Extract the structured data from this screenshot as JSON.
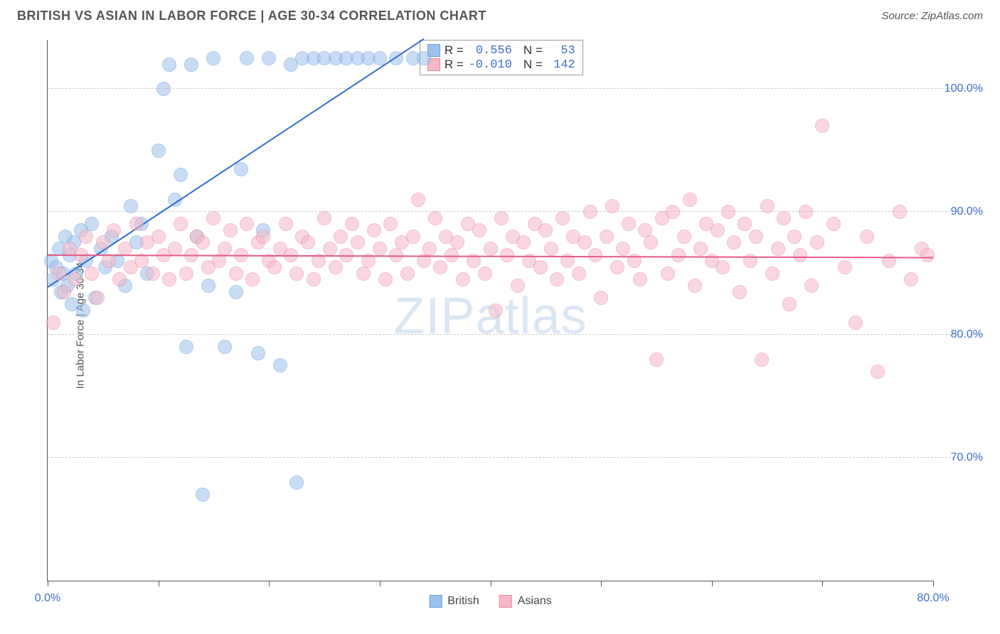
{
  "title": "BRITISH VS ASIAN IN LABOR FORCE | AGE 30-34 CORRELATION CHART",
  "source_label": "Source: ZipAtlas.com",
  "ylabel": "In Labor Force | Age 30-34",
  "watermark_bold": "ZIP",
  "watermark_thin": "atlas",
  "chart": {
    "type": "scatter",
    "xlim": [
      0,
      80
    ],
    "ylim": [
      60,
      104
    ],
    "yticks": [
      70,
      80,
      90,
      100
    ],
    "ytick_labels": [
      "70.0%",
      "80.0%",
      "90.0%",
      "100.0%"
    ],
    "xticks": [
      0,
      10,
      20,
      30,
      40,
      50,
      60,
      70,
      80
    ],
    "xtick_labels": {
      "0": "0.0%",
      "80": "80.0%"
    },
    "grid_color": "#cccccc",
    "axis_color": "#555555",
    "background_color": "#ffffff",
    "marker_radius": 10,
    "marker_opacity": 0.55,
    "series": [
      {
        "name": "British",
        "label": "British",
        "color_fill": "#9cc1ec",
        "color_stroke": "#6a9fd8",
        "R": "0.556",
        "N": "53",
        "trend": {
          "x1": 0,
          "y1": 83.8,
          "x2": 34,
          "y2": 104,
          "color": "#2f6fd0",
          "width": 2
        },
        "points": [
          [
            0.3,
            86
          ],
          [
            0.5,
            84.5
          ],
          [
            0.8,
            85.5
          ],
          [
            1.0,
            87
          ],
          [
            1.2,
            83.5
          ],
          [
            1.4,
            85
          ],
          [
            1.6,
            88
          ],
          [
            1.8,
            84
          ],
          [
            2.0,
            86.5
          ],
          [
            2.2,
            82.5
          ],
          [
            2.4,
            87.5
          ],
          [
            2.6,
            85
          ],
          [
            3.0,
            88.5
          ],
          [
            3.2,
            82
          ],
          [
            3.5,
            86
          ],
          [
            4.0,
            89
          ],
          [
            4.3,
            83
          ],
          [
            4.8,
            87
          ],
          [
            5.2,
            85.5
          ],
          [
            5.8,
            88
          ],
          [
            6.3,
            86
          ],
          [
            7.0,
            84
          ],
          [
            7.5,
            90.5
          ],
          [
            8.0,
            87.5
          ],
          [
            8.5,
            89
          ],
          [
            9.0,
            85
          ],
          [
            10.0,
            95
          ],
          [
            10.5,
            100
          ],
          [
            11.0,
            102
          ],
          [
            11.5,
            91
          ],
          [
            12.0,
            93
          ],
          [
            12.5,
            79
          ],
          [
            13.0,
            102
          ],
          [
            13.5,
            88
          ],
          [
            14.0,
            67
          ],
          [
            14.5,
            84
          ],
          [
            15.0,
            102.5
          ],
          [
            16.0,
            79
          ],
          [
            17.0,
            83.5
          ],
          [
            17.5,
            93.5
          ],
          [
            18.0,
            102.5
          ],
          [
            19.0,
            78.5
          ],
          [
            19.5,
            88.5
          ],
          [
            20.0,
            102.5
          ],
          [
            21.0,
            77.5
          ],
          [
            22.0,
            102
          ],
          [
            22.5,
            68
          ],
          [
            23.0,
            102.5
          ],
          [
            24.0,
            102.5
          ],
          [
            25.0,
            102.5
          ],
          [
            26.0,
            102.5
          ],
          [
            27.0,
            102.5
          ],
          [
            28.0,
            102.5
          ],
          [
            29.0,
            102.5
          ],
          [
            30.0,
            102.5
          ],
          [
            31.5,
            102.5
          ],
          [
            33.0,
            102.5
          ],
          [
            34.0,
            102.5
          ]
        ]
      },
      {
        "name": "Asians",
        "label": "Asians",
        "color_fill": "#f7b8c8",
        "color_stroke": "#e88aa5",
        "R": "-0.010",
        "N": "142",
        "trend": {
          "x1": 0,
          "y1": 86.4,
          "x2": 80,
          "y2": 86.2,
          "color": "#e65a88",
          "width": 2
        },
        "points": [
          [
            0.5,
            81
          ],
          [
            1,
            85
          ],
          [
            1.5,
            83.5
          ],
          [
            2,
            87
          ],
          [
            2.5,
            84.5
          ],
          [
            3,
            86.5
          ],
          [
            3.5,
            88
          ],
          [
            4,
            85
          ],
          [
            4.5,
            83
          ],
          [
            5,
            87.5
          ],
          [
            5.5,
            86
          ],
          [
            6,
            88.5
          ],
          [
            6.5,
            84.5
          ],
          [
            7,
            87
          ],
          [
            7.5,
            85.5
          ],
          [
            8,
            89
          ],
          [
            8.5,
            86
          ],
          [
            9,
            87.5
          ],
          [
            9.5,
            85
          ],
          [
            10,
            88
          ],
          [
            10.5,
            86.5
          ],
          [
            11,
            84.5
          ],
          [
            11.5,
            87
          ],
          [
            12,
            89
          ],
          [
            12.5,
            85
          ],
          [
            13,
            86.5
          ],
          [
            13.5,
            88
          ],
          [
            14,
            87.5
          ],
          [
            14.5,
            85.5
          ],
          [
            15,
            89.5
          ],
          [
            15.5,
            86
          ],
          [
            16,
            87
          ],
          [
            16.5,
            88.5
          ],
          [
            17,
            85
          ],
          [
            17.5,
            86.5
          ],
          [
            18,
            89
          ],
          [
            18.5,
            84.5
          ],
          [
            19,
            87.5
          ],
          [
            19.5,
            88
          ],
          [
            20,
            86
          ],
          [
            20.5,
            85.5
          ],
          [
            21,
            87
          ],
          [
            21.5,
            89
          ],
          [
            22,
            86.5
          ],
          [
            22.5,
            85
          ],
          [
            23,
            88
          ],
          [
            23.5,
            87.5
          ],
          [
            24,
            84.5
          ],
          [
            24.5,
            86
          ],
          [
            25,
            89.5
          ],
          [
            25.5,
            87
          ],
          [
            26,
            85.5
          ],
          [
            26.5,
            88
          ],
          [
            27,
            86.5
          ],
          [
            27.5,
            89
          ],
          [
            28,
            87.5
          ],
          [
            28.5,
            85
          ],
          [
            29,
            86
          ],
          [
            29.5,
            88.5
          ],
          [
            30,
            87
          ],
          [
            30.5,
            84.5
          ],
          [
            31,
            89
          ],
          [
            31.5,
            86.5
          ],
          [
            32,
            87.5
          ],
          [
            32.5,
            85
          ],
          [
            33,
            88
          ],
          [
            33.5,
            91
          ],
          [
            34,
            86
          ],
          [
            34.5,
            87
          ],
          [
            35,
            89.5
          ],
          [
            35.5,
            85.5
          ],
          [
            36,
            88
          ],
          [
            36.5,
            86.5
          ],
          [
            37,
            87.5
          ],
          [
            37.5,
            84.5
          ],
          [
            38,
            89
          ],
          [
            38.5,
            86
          ],
          [
            39,
            88.5
          ],
          [
            39.5,
            85
          ],
          [
            40,
            87
          ],
          [
            40.5,
            82
          ],
          [
            41,
            89.5
          ],
          [
            41.5,
            86.5
          ],
          [
            42,
            88
          ],
          [
            42.5,
            84
          ],
          [
            43,
            87.5
          ],
          [
            43.5,
            86
          ],
          [
            44,
            89
          ],
          [
            44.5,
            85.5
          ],
          [
            45,
            88.5
          ],
          [
            45.5,
            87
          ],
          [
            46,
            84.5
          ],
          [
            46.5,
            89.5
          ],
          [
            47,
            86
          ],
          [
            47.5,
            88
          ],
          [
            48,
            85
          ],
          [
            48.5,
            87.5
          ],
          [
            49,
            90
          ],
          [
            49.5,
            86.5
          ],
          [
            50,
            83
          ],
          [
            50.5,
            88
          ],
          [
            51,
            90.5
          ],
          [
            51.5,
            85.5
          ],
          [
            52,
            87
          ],
          [
            52.5,
            89
          ],
          [
            53,
            86
          ],
          [
            53.5,
            84.5
          ],
          [
            54,
            88.5
          ],
          [
            54.5,
            87.5
          ],
          [
            55,
            78
          ],
          [
            55.5,
            89.5
          ],
          [
            56,
            85
          ],
          [
            56.5,
            90
          ],
          [
            57,
            86.5
          ],
          [
            57.5,
            88
          ],
          [
            58,
            91
          ],
          [
            58.5,
            84
          ],
          [
            59,
            87
          ],
          [
            59.5,
            89
          ],
          [
            60,
            86
          ],
          [
            60.5,
            88.5
          ],
          [
            61,
            85.5
          ],
          [
            61.5,
            90
          ],
          [
            62,
            87.5
          ],
          [
            62.5,
            83.5
          ],
          [
            63,
            89
          ],
          [
            63.5,
            86
          ],
          [
            64,
            88
          ],
          [
            64.5,
            78
          ],
          [
            65,
            90.5
          ],
          [
            65.5,
            85
          ],
          [
            66,
            87
          ],
          [
            66.5,
            89.5
          ],
          [
            67,
            82.5
          ],
          [
            67.5,
            88
          ],
          [
            68,
            86.5
          ],
          [
            68.5,
            90
          ],
          [
            69,
            84
          ],
          [
            69.5,
            87.5
          ],
          [
            70,
            97
          ],
          [
            71,
            89
          ],
          [
            72,
            85.5
          ],
          [
            73,
            81
          ],
          [
            74,
            88
          ],
          [
            75,
            77
          ],
          [
            76,
            86
          ],
          [
            77,
            90
          ],
          [
            78,
            84.5
          ],
          [
            79,
            87
          ],
          [
            79.5,
            86.5
          ]
        ]
      }
    ]
  },
  "legend": {
    "r_label": "R =",
    "n_label": "N =",
    "value_color": "#3b6fc9"
  }
}
